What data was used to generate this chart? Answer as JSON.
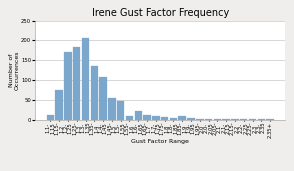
{
  "title": "Irene Gust Factor Frequency",
  "xlabel": "Gust Factor Range",
  "ylabel": "Number of\nOccurrences",
  "bar_color": "#7ba7cc",
  "background_color": "#f0eeec",
  "plot_bg_color": "#ffffff",
  "categories": [
    "1.1-\n1.15",
    "1.15-\n1.2",
    "1.2-\n1.25",
    "1.25-\n1.3",
    "1.3-\n1.35",
    "1.35-\n1.4",
    "1.4-\n1.45",
    "1.45-\n1.5",
    "1.5-\n1.55",
    "1.55-\n1.6",
    "1.6-\n1.65",
    "1.65-\n1.7",
    "1.7-\n1.75",
    "1.75-\n1.8",
    "1.8-\n1.85",
    "1.85-\n1.9",
    "1.9-\n1.95",
    "1.95-\n2.0",
    "2.0-\n2.05",
    "2.05-\n2.1",
    "2.1-\n2.15",
    "2.15-\n2.2",
    "2.2-\n2.25",
    "2.25-\n2.3",
    "2.3-\n2.35",
    "2.35+"
  ],
  "values": [
    12,
    75,
    170,
    183,
    207,
    135,
    108,
    55,
    48,
    10,
    23,
    13,
    9,
    8,
    4,
    10,
    4,
    2,
    3,
    1,
    2,
    1,
    1,
    1,
    1,
    3
  ],
  "ylim": [
    0,
    250
  ],
  "yticks": [
    0,
    50,
    100,
    150,
    200,
    250
  ],
  "title_fontsize": 7,
  "axis_label_fontsize": 4.5,
  "tick_fontsize": 3.8,
  "grid_color": "#c8c8c8",
  "spine_color": "#aaaaaa"
}
